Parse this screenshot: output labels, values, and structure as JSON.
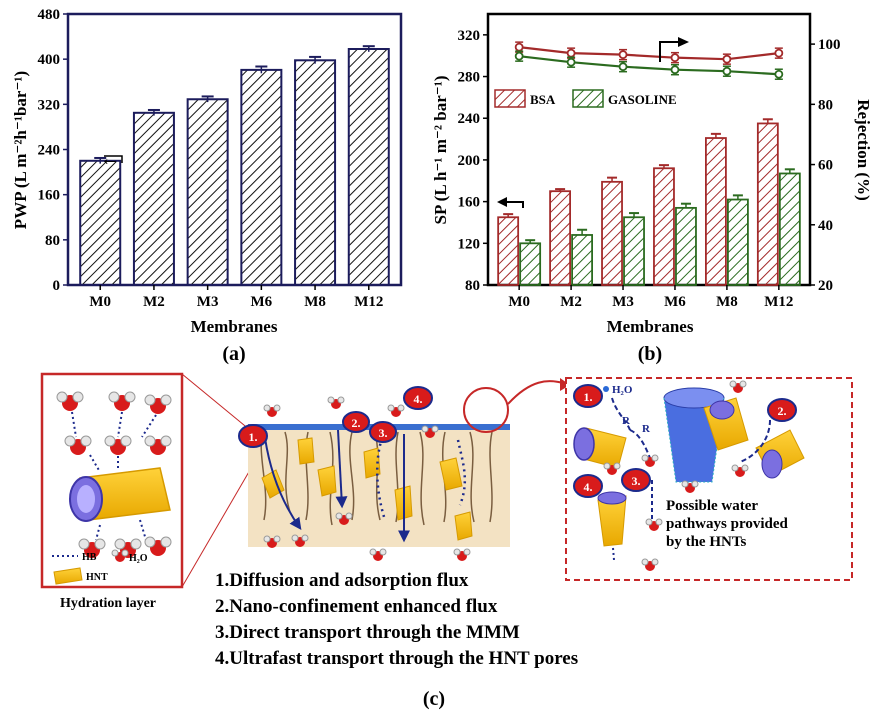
{
  "panel_a_label": "(a)",
  "panel_b_label": "(b)",
  "panel_c_label": "(c)",
  "chart_data": [
    {
      "type": "bar",
      "categories": [
        "M0",
        "M2",
        "M3",
        "M6",
        "M8",
        "M12"
      ],
      "series": [
        {
          "values": [
            220,
            305,
            329,
            381,
            398,
            418
          ],
          "errors": [
            5,
            5,
            5,
            6,
            6,
            5
          ]
        }
      ],
      "ylim": [
        0,
        480
      ],
      "yticks": [
        "0",
        "80",
        "160",
        "240",
        "320",
        "400",
        "480"
      ],
      "xlabel": "Membranes",
      "ylabel": "PWP (L m⁻²h⁻¹bar⁻¹)",
      "colors": {
        "frame": "#1c1c5c",
        "bar": "#1c1c5c"
      },
      "annotation": "←"
    },
    {
      "type": "bar",
      "categories": [
        "M0",
        "M2",
        "M3",
        "M6",
        "M8",
        "M12"
      ],
      "series": [
        {
          "name": "BSA",
          "values": [
            145,
            170,
            179,
            192,
            221,
            235
          ],
          "errors": [
            3,
            2,
            4,
            3,
            4,
            4
          ],
          "color": "#a32a2a"
        },
        {
          "name": "GASOLINE",
          "values": [
            120,
            128,
            145,
            154,
            162,
            187
          ],
          "errors": [
            3,
            5,
            4,
            4,
            4,
            4
          ],
          "color": "#2b6b1f"
        }
      ],
      "rejection_series": [
        {
          "name": "BSA",
          "values": [
            99,
            97,
            96.5,
            95.5,
            95,
            97
          ],
          "color": "#a32a2a"
        },
        {
          "name": "GASOLINE",
          "values": [
            96,
            94,
            92.5,
            91.5,
            91,
            90
          ],
          "color": "#2b6b1f"
        }
      ],
      "ylim": [
        80,
        340
      ],
      "yticks": [
        "80",
        "120",
        "160",
        "200",
        "240",
        "280",
        "320"
      ],
      "y2lim": [
        20,
        110
      ],
      "y2ticks": [
        "20",
        "40",
        "60",
        "80",
        "100"
      ],
      "xlabel": "Membranes",
      "ylabel": "SP (L h⁻¹ m⁻² bar⁻¹)",
      "y2label": "Rejection (%)",
      "legend_placement": "top-left"
    }
  ],
  "schematic": {
    "legend_hb": "HB",
    "legend_h2o": "H₂O",
    "legend_hnt": "HNT",
    "hydration_label": "Hydration layer",
    "inset_h2o": "H₂O",
    "inset_r1": "R",
    "inset_r2": "R",
    "possible_lines": [
      "Possible water",
      "pathways provided",
      "by the HNTs"
    ],
    "markers": [
      "1.",
      "2.",
      "3.",
      "4."
    ],
    "list": [
      "1.Diffusion and adsorption flux",
      "2.Nano-confinement enhanced flux",
      "3.Direct transport through the MMM",
      "4.Ultrafast transport through the HNT pores"
    ]
  }
}
